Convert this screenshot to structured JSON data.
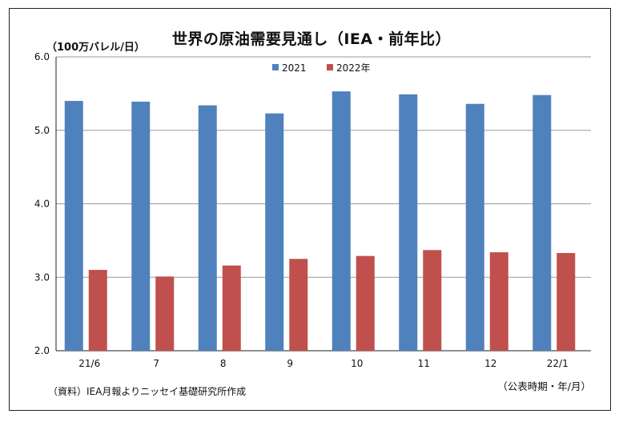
{
  "chart_data": {
    "type": "bar",
    "title": "世界の原油需要見通し（IEA・前年比）",
    "ylabel": "（100万バレル/日）",
    "xlabel": "（公表時期・年/月）",
    "source": "（資料）IEA月報よりニッセイ基礎研究所作成",
    "categories": [
      "21/6",
      "7",
      "8",
      "9",
      "10",
      "11",
      "12",
      "22/1"
    ],
    "series": [
      {
        "name": "2021",
        "color": "#4F81BD",
        "values": [
          5.4,
          5.39,
          5.34,
          5.23,
          5.53,
          5.49,
          5.36,
          5.48
        ]
      },
      {
        "name": "2022年",
        "color": "#C0504D",
        "values": [
          3.1,
          3.01,
          3.16,
          3.25,
          3.29,
          3.37,
          3.34,
          3.33
        ]
      }
    ],
    "ylim": [
      2.0,
      6.0
    ],
    "yticks": [
      "2.0",
      "3.0",
      "4.0",
      "5.0",
      "6.0"
    ],
    "grid": true,
    "legend": "top-center"
  }
}
